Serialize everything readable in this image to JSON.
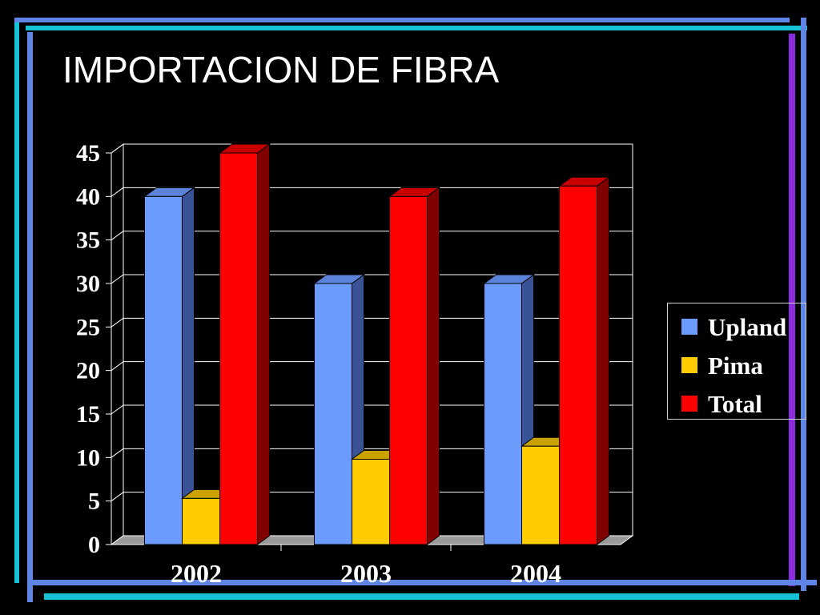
{
  "slide": {
    "title": "IMPORTACION DE FIBRA"
  },
  "frame_colors": {
    "blue": "#5f86e6",
    "cyan": "#16c3d6",
    "violet": "#8a2be2"
  },
  "chart_data": {
    "type": "bar",
    "style": "3d-clustered",
    "categories": [
      "2002",
      "2003",
      "2004"
    ],
    "series": [
      {
        "name": "Upland",
        "values": [
          40,
          30,
          30
        ],
        "color": "#6c9bff",
        "side_color": "#3a5296",
        "top_color": "#5b83d9"
      },
      {
        "name": "Pima",
        "values": [
          5.3,
          9.8,
          11.3
        ],
        "color": "#ffcc00",
        "side_color": "#9b7c00",
        "top_color": "#c9a200"
      },
      {
        "name": "Total",
        "values": [
          45,
          40,
          41.2
        ],
        "color": "#ff0000",
        "side_color": "#800000",
        "top_color": "#c90000"
      }
    ],
    "ylim": [
      0,
      45
    ],
    "yticks": [
      "0",
      "5",
      "10",
      "15",
      "20",
      "25",
      "30",
      "35",
      "40",
      "45"
    ],
    "grid": true,
    "legend": {
      "position": "right"
    }
  }
}
